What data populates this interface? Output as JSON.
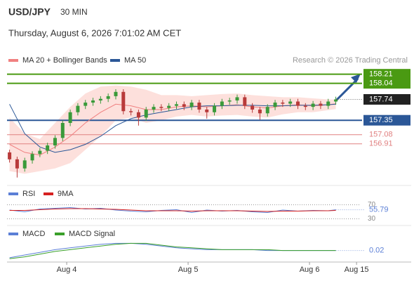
{
  "header": {
    "symbol": "USD/JPY",
    "timeframe": "30 MIN",
    "datetime": "Thursday, August 6, 2026 7:01:02 AM CET",
    "credit": "Research © 2026 Trading Central"
  },
  "chart_data": [
    {
      "type": "candlestick",
      "xlim": [
        0,
        140
      ],
      "ylim": [
        156.25,
        158.35
      ],
      "up_color": "#3a9a3a",
      "down_color": "#b83a3a",
      "x": [
        1,
        4,
        7,
        10,
        13,
        16,
        19,
        22,
        25,
        28,
        31,
        34,
        37,
        40,
        43,
        46,
        49,
        52,
        55,
        58,
        61,
        64,
        67,
        70,
        73,
        76,
        79,
        82,
        85,
        88,
        91,
        94,
        97,
        100,
        103,
        106,
        109,
        112,
        115,
        118,
        121,
        124,
        127,
        130
      ],
      "open": [
        156.75,
        156.62,
        156.45,
        156.6,
        156.72,
        156.78,
        156.88,
        157.02,
        157.3,
        157.5,
        157.62,
        157.68,
        157.72,
        157.75,
        157.8,
        157.88,
        157.52,
        157.5,
        157.4,
        157.55,
        157.6,
        157.58,
        157.62,
        157.65,
        157.6,
        157.68,
        157.55,
        157.5,
        157.62,
        157.7,
        157.72,
        157.78,
        157.62,
        157.55,
        157.48,
        157.6,
        157.68,
        157.66,
        157.7,
        157.62,
        157.6,
        157.66,
        157.62,
        157.7
      ],
      "high": [
        156.8,
        156.67,
        156.65,
        156.77,
        156.83,
        156.93,
        157.07,
        157.35,
        157.55,
        157.67,
        157.73,
        157.77,
        157.8,
        157.85,
        157.93,
        157.93,
        157.57,
        157.55,
        157.6,
        157.65,
        157.65,
        157.67,
        157.7,
        157.7,
        157.73,
        157.73,
        157.6,
        157.67,
        157.75,
        157.77,
        157.83,
        157.83,
        157.67,
        157.6,
        157.65,
        157.73,
        157.73,
        157.75,
        157.75,
        157.67,
        157.71,
        157.71,
        157.75,
        157.79
      ],
      "low": [
        156.56,
        156.28,
        156.39,
        156.54,
        156.66,
        156.72,
        156.82,
        156.96,
        157.24,
        157.44,
        157.56,
        157.62,
        157.66,
        157.69,
        157.74,
        157.46,
        157.44,
        157.25,
        157.34,
        157.49,
        157.52,
        157.52,
        157.56,
        157.54,
        157.54,
        157.49,
        157.38,
        157.44,
        157.56,
        157.64,
        157.66,
        157.56,
        157.49,
        157.36,
        157.42,
        157.54,
        157.6,
        157.6,
        157.56,
        157.54,
        157.54,
        157.56,
        157.56,
        157.64
      ],
      "close": [
        156.62,
        156.45,
        156.6,
        156.72,
        156.78,
        156.88,
        157.02,
        157.3,
        157.5,
        157.62,
        157.68,
        157.72,
        157.75,
        157.8,
        157.88,
        157.52,
        157.5,
        157.4,
        157.55,
        157.6,
        157.58,
        157.62,
        157.65,
        157.6,
        157.68,
        157.55,
        157.5,
        157.62,
        157.7,
        157.72,
        157.78,
        157.62,
        157.55,
        157.48,
        157.6,
        157.68,
        157.66,
        157.7,
        157.62,
        157.6,
        157.66,
        157.62,
        157.7,
        157.74
      ],
      "series": [
        {
          "name": "MA 20 + Bollinger Bands",
          "color": "#f08080",
          "band_color": "#fde0dc",
          "x": [
            1,
            7,
            13,
            19,
            25,
            31,
            37,
            43,
            49,
            55,
            61,
            67,
            73,
            79,
            85,
            91,
            97,
            103,
            109,
            115,
            121,
            127,
            130
          ],
          "values": [
            156.9,
            156.75,
            156.7,
            156.85,
            157.05,
            157.3,
            157.5,
            157.65,
            157.62,
            157.55,
            157.55,
            157.6,
            157.62,
            157.6,
            157.62,
            157.64,
            157.6,
            157.58,
            157.62,
            157.64,
            157.62,
            157.64,
            157.66
          ],
          "upper": [
            157.4,
            157.1,
            157.0,
            157.3,
            157.6,
            157.85,
            157.98,
            158.0,
            157.98,
            157.92,
            157.82,
            157.82,
            157.8,
            157.82,
            157.84,
            157.85,
            157.82,
            157.8,
            157.78,
            157.78,
            157.76,
            157.74,
            157.74
          ],
          "lower": [
            156.4,
            156.35,
            156.4,
            156.45,
            156.55,
            156.8,
            157.05,
            157.35,
            157.4,
            157.3,
            157.35,
            157.42,
            157.45,
            157.42,
            157.44,
            157.45,
            157.42,
            157.4,
            157.46,
            157.5,
            157.5,
            157.54,
            157.56
          ]
        },
        {
          "name": "MA 50",
          "color": "#2b5797",
          "x": [
            1,
            7,
            13,
            19,
            25,
            31,
            37,
            43,
            49,
            55,
            61,
            67,
            73,
            79,
            85,
            91,
            97,
            103,
            109,
            115,
            121,
            127,
            130
          ],
          "values": [
            157.65,
            157.1,
            156.85,
            156.75,
            156.8,
            156.9,
            157.05,
            157.25,
            157.38,
            157.45,
            157.5,
            157.55,
            157.6,
            157.62,
            157.62,
            157.63,
            157.63,
            157.62,
            157.62,
            157.63,
            157.63,
            157.64,
            157.65
          ]
        }
      ],
      "levels": [
        {
          "value": 158.21,
          "color": "#4a9a12",
          "label_bg": "#4a9a12"
        },
        {
          "value": 158.04,
          "color": "#4a9a12",
          "label_bg": "#4a9a12"
        },
        {
          "value": 157.35,
          "color": "#2b5797",
          "label_bg": "#2b5797"
        },
        {
          "value": 157.08,
          "color": "#e08080",
          "label_bg": null
        },
        {
          "value": 156.91,
          "color": "#e08080",
          "label_bg": null
        }
      ]
    },
    {
      "type": "line",
      "xlim": [
        0,
        140
      ],
      "ylim": [
        25,
        75
      ],
      "yticks": [
        30,
        70
      ],
      "series": [
        {
          "name": "RSI",
          "color": "#5b7fd6",
          "x": [
            1,
            7,
            13,
            19,
            25,
            31,
            37,
            43,
            49,
            55,
            61,
            67,
            73,
            79,
            85,
            91,
            97,
            103,
            109,
            115,
            121,
            127,
            130
          ],
          "values": [
            55,
            50,
            58,
            60,
            62,
            58,
            60,
            55,
            52,
            50,
            54,
            56,
            48,
            55,
            52,
            54,
            50,
            48,
            55,
            52,
            54,
            53,
            55.79
          ]
        },
        {
          "name": "9MA",
          "color": "#d62020",
          "x": [
            1,
            7,
            13,
            19,
            25,
            31,
            37,
            43,
            49,
            55,
            61,
            67,
            73,
            79,
            85,
            91,
            97,
            103,
            109,
            115,
            121,
            127,
            130
          ],
          "values": [
            54,
            54,
            56,
            58,
            59,
            59,
            58,
            57,
            55,
            53,
            53,
            53,
            52,
            53,
            53,
            53,
            52,
            51,
            52,
            52,
            53,
            53,
            54
          ]
        }
      ]
    },
    {
      "type": "line",
      "xlim": [
        0,
        140
      ],
      "ylim": [
        -0.1,
        0.15
      ],
      "xticks": [
        {
          "value": 23.6,
          "label": "Aug 4"
        },
        {
          "value": 71.6,
          "label": "Aug 5"
        },
        {
          "value": 119.6,
          "label": "Aug 6"
        },
        {
          "value": 138.2,
          "label": "Aug 15"
        }
      ],
      "series": [
        {
          "name": "MACD",
          "color": "#5b7fd6",
          "x": [
            1,
            7,
            13,
            19,
            25,
            31,
            37,
            43,
            49,
            55,
            61,
            67,
            73,
            79,
            85,
            91,
            97,
            103,
            109,
            115,
            121,
            127,
            130
          ],
          "values": [
            -0.06,
            -0.03,
            0.0,
            0.03,
            0.05,
            0.07,
            0.09,
            0.1,
            0.1,
            0.09,
            0.07,
            0.05,
            0.04,
            0.03,
            0.03,
            0.03,
            0.03,
            0.02,
            0.02,
            0.02,
            0.02,
            0.02,
            0.02
          ]
        },
        {
          "name": "MACD Signal",
          "color": "#3aa02a",
          "x": [
            1,
            7,
            13,
            19,
            25,
            31,
            37,
            43,
            49,
            55,
            61,
            67,
            73,
            79,
            85,
            91,
            97,
            103,
            109,
            115,
            121,
            127,
            130
          ],
          "values": [
            -0.07,
            -0.05,
            -0.02,
            0.01,
            0.03,
            0.05,
            0.07,
            0.09,
            0.1,
            0.1,
            0.08,
            0.06,
            0.05,
            0.04,
            0.03,
            0.03,
            0.03,
            0.03,
            0.02,
            0.02,
            0.02,
            0.02,
            0.02
          ]
        }
      ]
    }
  ]
}
